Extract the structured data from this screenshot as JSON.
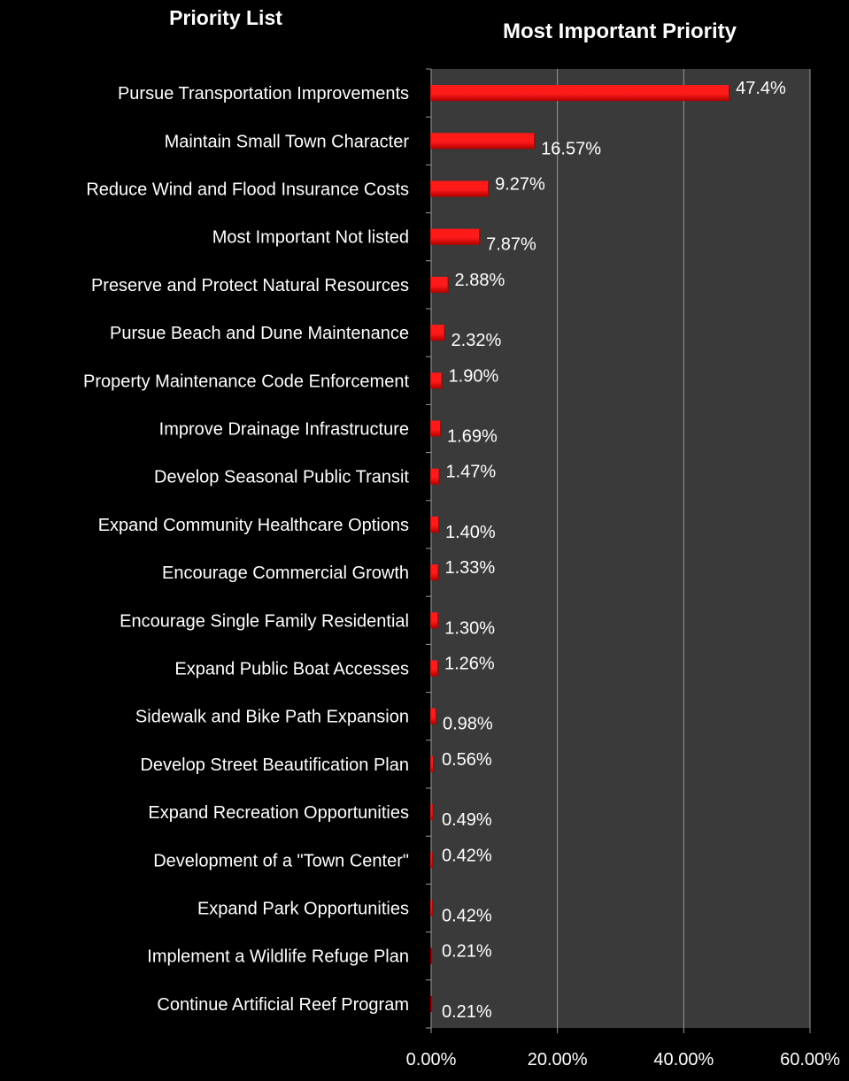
{
  "left_title": "Priority List",
  "chart_data": {
    "type": "bar",
    "orientation": "horizontal",
    "title": "Most Important Priority",
    "xlim": [
      0,
      60
    ],
    "x_ticks": [
      "0.00%",
      "20.00%",
      "40.00%",
      "60.00%"
    ],
    "grid": "vertical gridlines",
    "categories": [
      "Pursue Transportation Improvements",
      "Maintain Small Town Character",
      "Reduce Wind and Flood Insurance Costs",
      "Most Important Not listed",
      "Preserve and Protect Natural Resources",
      "Pursue Beach and Dune Maintenance",
      "Property Maintenance Code Enforcement",
      "Improve Drainage Infrastructure",
      "Develop Seasonal Public Transit",
      "Expand Community Healthcare Options",
      "Encourage Commercial Growth",
      "Encourage Single Family Residential",
      "Expand Public Boat Accesses",
      "Sidewalk and Bike Path Expansion",
      "Develop Street Beautification Plan",
      "Expand Recreation Opportunities",
      "Development of a \"Town Center\"",
      "Expand Park Opportunities",
      "Implement a Wildlife Refuge Plan",
      "Continue Artificial Reef Program"
    ],
    "values": [
      47.4,
      16.57,
      9.27,
      7.87,
      2.88,
      2.32,
      1.9,
      1.69,
      1.47,
      1.4,
      1.33,
      1.3,
      1.26,
      0.98,
      0.56,
      0.49,
      0.42,
      0.42,
      0.21,
      0.21
    ],
    "value_labels": [
      "47.4%",
      "16.57%",
      "9.27%",
      "7.87%",
      "2.88%",
      "2.32%",
      "1.90%",
      "1.69%",
      "1.47%",
      "1.40%",
      "1.33%",
      "1.30%",
      "1.26%",
      "0.98%",
      "0.56%",
      "0.49%",
      "0.42%",
      "0.42%",
      "0.21%",
      "0.21%"
    ],
    "colors": {
      "bar": "#ff1a1a",
      "bar_dark": "#b30000",
      "plot_bg": "#3a3a3a",
      "page_bg": "#000000",
      "grid": "#9a9a9a"
    }
  }
}
